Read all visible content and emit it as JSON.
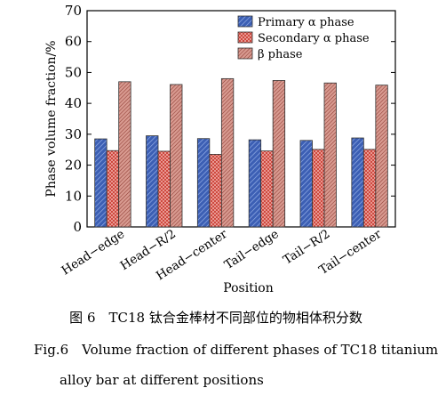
{
  "chart_data": {
    "type": "bar",
    "title": "",
    "xlabel": "Position",
    "ylabel": "Phase volume fraction/%",
    "ylim": [
      0,
      70
    ],
    "yticks": [
      0,
      10,
      20,
      30,
      40,
      50,
      60,
      70
    ],
    "grid": false,
    "legend_position": "top-right",
    "categories": [
      "Head−edge",
      "Head−R/2",
      "Head−center",
      "Tail−edge",
      "Tail−R/2",
      "Tail−center"
    ],
    "series": [
      {
        "name": "Primary α phase",
        "values": [
          28.5,
          29.5,
          28.6,
          28.2,
          28.0,
          28.8
        ],
        "color": "#4a72c8",
        "pattern": "diagonal"
      },
      {
        "name": "Secondary α phase",
        "values": [
          24.7,
          24.5,
          23.5,
          24.6,
          25.1,
          25.1
        ],
        "color": "#e88880",
        "pattern": "crosshatch"
      },
      {
        "name": "β phase",
        "values": [
          47.0,
          46.1,
          48.0,
          47.4,
          46.6,
          45.9
        ],
        "color": "#c47a6e",
        "pattern": "diagonal-dense"
      }
    ]
  },
  "caption": {
    "cn": "图 6　TC18 钛合金棒材不同部位的物相体积分数",
    "en_line1": "Fig.6　Volume fraction of different phases of TC18 titanium",
    "en_line2": "alloy bar at different positions"
  }
}
